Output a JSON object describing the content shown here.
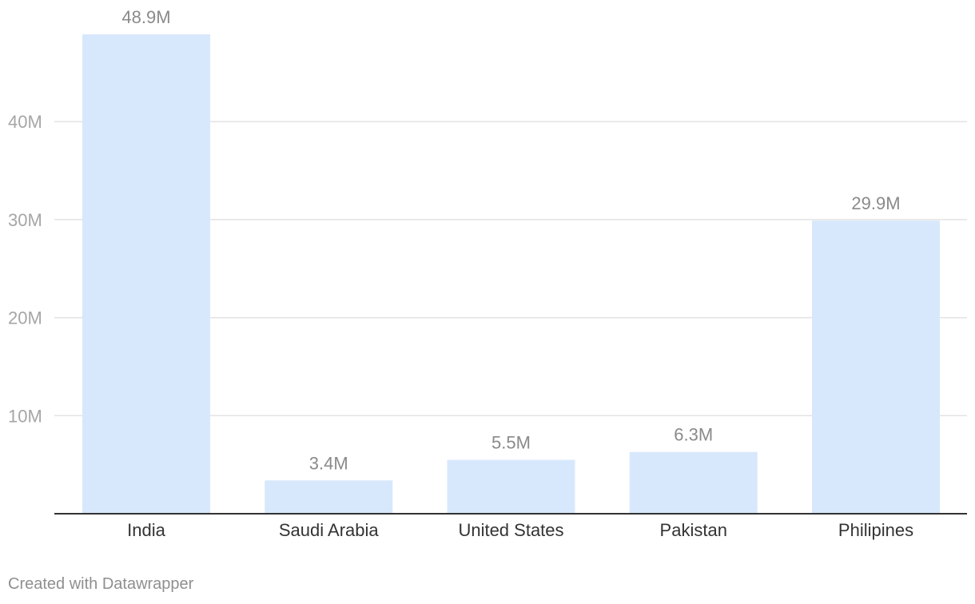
{
  "chart_data": {
    "type": "bar",
    "categories": [
      "India",
      "Saudi Arabia",
      "United States",
      "Pakistan",
      "Philipines"
    ],
    "values": [
      48.9,
      3.4,
      5.5,
      6.3,
      29.9
    ],
    "value_labels": [
      "48.9M",
      "3.4M",
      "5.5M",
      "6.3M",
      "29.9M"
    ],
    "y_ticks": [
      10,
      20,
      30,
      40
    ],
    "y_tick_labels": [
      "10M",
      "20M",
      "30M",
      "40M"
    ],
    "ylim": [
      0,
      52
    ],
    "grid": true,
    "title": "",
    "xlabel": "",
    "ylabel": ""
  },
  "colors": {
    "bar": "#d8e8fc"
  },
  "credit": "Created with Datawrapper"
}
